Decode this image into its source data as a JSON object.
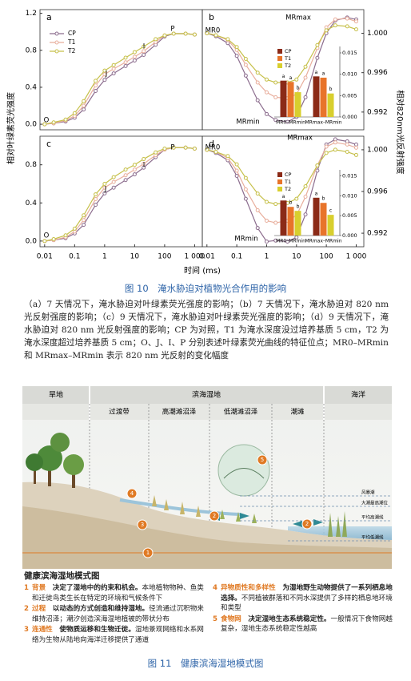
{
  "figure10": {
    "caption": "图 10　淹水胁迫对植物光合作用的影响",
    "description": "（a）7 天情况下，淹水胁迫对叶绿素荧光强度的影响；（b）7 天情况下，淹水胁迫对 820 nm 光反射强度的影响；（c）9 天情况下，淹水胁迫对叶绿素荧光强度的影响；（d）9 天情况下，淹水胁迫对 820 nm 光反射强度的影响；CP 为对照，T1 为淹水深度没过培养基质 5 cm，T2 为淹水深度超过培养基质 5 cm；O、J、I、P 分别表述叶绿素荧光曲线的特征位点；MR0–MRmin 和 MRmax–MRmin 表示 820 nm 光反射的变化幅度",
    "y_label": "相对叶绿素荧光强度",
    "y2_label": "相对820nm光反射强度",
    "x_label": "时间 (ms)"
  },
  "chart_data": [
    {
      "type": "line",
      "panel": "a",
      "log_x": true,
      "legend": "upper left",
      "x": [
        0.01,
        0.02,
        0.05,
        0.1,
        0.2,
        0.5,
        1,
        2,
        5,
        10,
        20,
        50,
        100,
        200,
        500,
        1000
      ],
      "xlim": [
        0.007,
        1800
      ],
      "ylim": [
        -0.06,
        1.24
      ],
      "yticks": [
        {
          "value": 0,
          "label": "0.0"
        },
        0.4,
        0.8,
        1.2
      ],
      "annotations": [
        "O",
        "J",
        "I",
        "P"
      ],
      "series": [
        {
          "name": "CP",
          "color": "#8c6d8e",
          "values": [
            0.0,
            0.01,
            0.03,
            0.07,
            0.16,
            0.36,
            0.48,
            0.55,
            0.63,
            0.69,
            0.75,
            0.86,
            0.95,
            0.98,
            0.98,
            0.97
          ]
        },
        {
          "name": "T1",
          "color": "#e8ae9c",
          "values": [
            0.0,
            0.01,
            0.04,
            0.09,
            0.2,
            0.42,
            0.54,
            0.6,
            0.67,
            0.73,
            0.79,
            0.89,
            0.96,
            0.98,
            0.98,
            0.97
          ]
        },
        {
          "name": "T2",
          "color": "#c6c04a",
          "values": [
            0.0,
            0.02,
            0.05,
            0.12,
            0.25,
            0.47,
            0.58,
            0.64,
            0.72,
            0.78,
            0.84,
            0.92,
            0.96,
            0.98,
            0.98,
            0.97
          ]
        }
      ]
    },
    {
      "type": "line",
      "panel": "b",
      "log_x": true,
      "x": [
        0.01,
        0.02,
        0.05,
        0.1,
        0.2,
        0.5,
        1,
        2,
        5,
        10,
        20,
        50,
        100,
        200,
        500,
        1000
      ],
      "xlim": [
        0.007,
        1800
      ],
      "y2lim": [
        0.9902,
        1.0024
      ],
      "y2ticks": [
        0.992,
        0.996,
        {
          "value": 1,
          "label": "1.000"
        }
      ],
      "annotations": [
        "MR0",
        "MRmin",
        "MRmax"
      ],
      "series": [
        {
          "color": "#8c6d8e",
          "axis": "y2",
          "values": [
            1.0,
            0.9997,
            0.999,
            0.9977,
            0.9957,
            0.9932,
            0.9918,
            0.9912,
            0.991,
            0.9915,
            0.9935,
            0.9975,
            1.0,
            1.0013,
            1.0016,
            1.0014
          ]
        },
        {
          "color": "#e8ae9c",
          "axis": "y2",
          "values": [
            1.0,
            0.9998,
            0.9993,
            0.9983,
            0.9968,
            0.995,
            0.994,
            0.9935,
            0.9934,
            0.9938,
            0.9955,
            0.9985,
            1.0006,
            1.0014,
            1.0015,
            1.0012
          ]
        },
        {
          "color": "#c6c04a",
          "axis": "y2",
          "values": [
            1.0,
            0.9998,
            0.9994,
            0.9986,
            0.9974,
            0.996,
            0.9953,
            0.995,
            0.995,
            0.9953,
            0.9966,
            0.9988,
            1.0003,
            1.0008,
            1.0007,
            1.0004
          ]
        }
      ],
      "inset": {
        "type": "bar",
        "categories": [
          "MR0–MRmin",
          "MRmax–MRmin"
        ],
        "legend": "upper left",
        "ylim": [
          0,
          0.0165
        ],
        "yticks": [
          {
            "value": 0,
            "label": "0.000"
          },
          0.005,
          {
            "value": 0.01,
            "label": "0.010"
          },
          0.015
        ],
        "series": [
          {
            "name": "CP",
            "color": "#8b2a17",
            "values": [
              0.0085,
              0.0095
            ],
            "letters": [
              "a",
              "a"
            ]
          },
          {
            "name": "T1",
            "color": "#e8742a",
            "values": [
              0.0082,
              0.0092
            ],
            "letters": [
              "a",
              "a"
            ]
          },
          {
            "name": "T2",
            "color": "#d8cf2e",
            "values": [
              0.0058,
              0.0055
            ],
            "letters": [
              "b",
              "b"
            ]
          }
        ]
      }
    },
    {
      "type": "line",
      "panel": "c",
      "log_x": true,
      "x": [
        0.01,
        0.02,
        0.05,
        0.1,
        0.2,
        0.5,
        1,
        2,
        5,
        10,
        20,
        50,
        100,
        200,
        500,
        1000
      ],
      "xlim": [
        0.007,
        1800
      ],
      "ylim": [
        -0.06,
        1.1
      ],
      "xticks": [
        0.01,
        0.1,
        1,
        10,
        100,
        {
          "value": 1000,
          "label": "1 000"
        }
      ],
      "yticks": [
        {
          "value": 0,
          "label": "0.0"
        },
        0.4,
        0.8
      ],
      "annotations": [
        "O",
        "J",
        "I",
        "P"
      ],
      "series": [
        {
          "color": "#8c6d8e",
          "values": [
            0.0,
            0.01,
            0.03,
            0.08,
            0.17,
            0.38,
            0.5,
            0.56,
            0.64,
            0.7,
            0.77,
            0.88,
            0.96,
            0.98,
            0.98,
            0.97
          ]
        },
        {
          "color": "#e8ae9c",
          "values": [
            0.0,
            0.01,
            0.04,
            0.1,
            0.22,
            0.44,
            0.56,
            0.62,
            0.69,
            0.75,
            0.81,
            0.9,
            0.96,
            0.98,
            0.98,
            0.97
          ]
        },
        {
          "color": "#c6c04a",
          "values": [
            0.0,
            0.02,
            0.06,
            0.13,
            0.27,
            0.49,
            0.6,
            0.67,
            0.75,
            0.8,
            0.86,
            0.93,
            0.97,
            0.98,
            0.98,
            0.97
          ]
        }
      ]
    },
    {
      "type": "line",
      "panel": "d",
      "log_x": true,
      "x": [
        0.01,
        0.02,
        0.05,
        0.1,
        0.2,
        0.5,
        1,
        2,
        5,
        10,
        20,
        50,
        100,
        200,
        500,
        1000
      ],
      "xlim": [
        0.007,
        1800
      ],
      "y2lim": [
        0.9907,
        1.0013
      ],
      "xticks": [
        0.01,
        0.1,
        1,
        10,
        100,
        {
          "value": 1000,
          "label": "1 000"
        }
      ],
      "y2ticks": [
        0.992,
        0.996,
        {
          "value": 1,
          "label": "1.000"
        }
      ],
      "annotations": [
        "MR0",
        "MRmin",
        "MRmax"
      ],
      "series": [
        {
          "color": "#8c6d8e",
          "axis": "y2",
          "values": [
            1.0,
            0.9997,
            0.999,
            0.9975,
            0.9953,
            0.9925,
            0.9912,
            0.9913,
            0.9912,
            0.9916,
            0.9938,
            0.998,
            1.0005,
            1.001,
            1.0008,
            1.0005
          ]
        },
        {
          "color": "#e8ae9c",
          "axis": "y2",
          "values": [
            1.0,
            0.9998,
            0.9992,
            0.998,
            0.9962,
            0.9942,
            0.9932,
            0.993,
            0.9932,
            0.9937,
            0.9955,
            0.9985,
            1.0003,
            1.0007,
            1.0005,
            1.0002
          ]
        },
        {
          "color": "#c6c04a",
          "axis": "y2",
          "values": [
            1.0,
            0.9998,
            0.9994,
            0.9986,
            0.9973,
            0.9958,
            0.995,
            0.9948,
            0.9949,
            0.9953,
            0.9965,
            0.9985,
            0.9997,
            1.0,
            0.9998,
            0.9995
          ]
        }
      ],
      "inset": {
        "type": "bar",
        "categories": [
          "MR0–MRmin",
          "MRmax–MRmin"
        ],
        "legend": "upper left",
        "ylim": [
          0,
          0.0165
        ],
        "yticks": [
          {
            "value": 0,
            "label": "0.000"
          },
          0.005,
          {
            "value": 0.01,
            "label": "0.010"
          },
          0.015
        ],
        "series": [
          {
            "name": "CP",
            "color": "#8b2a17",
            "values": [
              0.0088,
              0.0095
            ],
            "letters": [
              "a",
              "a"
            ]
          },
          {
            "name": "T1",
            "color": "#e8742a",
            "values": [
              0.0072,
              0.0082
            ],
            "letters": [
              "b",
              "b"
            ]
          },
          {
            "name": "T2",
            "color": "#d8cf2e",
            "values": [
              0.0062,
              0.0052
            ],
            "letters": [
              "b",
              "c"
            ]
          }
        ]
      }
    }
  ],
  "figure11": {
    "caption": "图 11　健康滨海湿地模式图",
    "title": "健康滨海湿地模式图",
    "zones": [
      "旱地",
      "滨海湿地",
      "海洋"
    ],
    "subzones": [
      "过渡带",
      "高潮滩沼泽",
      "低潮滩沼泽",
      "潮滩"
    ],
    "levels": [
      "风暴潮",
      "大潮最高潮位",
      "平均高潮线",
      "平均低潮线"
    ],
    "items": [
      {
        "number": "1",
        "head": "背景",
        "bold": "决定了湿地中的约束和机会。",
        "text": "本地植物物种、鱼类和迁徙鸟类生长在特定的环境和气候条件下"
      },
      {
        "number": "2",
        "head": "过程",
        "bold": "以动态的方式创造和维持湿地。",
        "text": "径流通过沉积物来维持沼泽；潮汐创造滨海湿地植被的带状分布"
      },
      {
        "number": "3",
        "head": "连通性",
        "bold": "使物质运移和生物迁徙。",
        "text": "湿地景观网络和水系网络为生物从陆地向海洋迁移提供了通道"
      },
      {
        "number": "4",
        "head": "异物质性和多样性",
        "bold": "为湿地野生动物提供了一系列栖息地选择。",
        "text": "不同植被群落和不同水深提供了多样的栖息地环境和类型"
      },
      {
        "number": "5",
        "head": "食物网",
        "bold": "决定湿地生态系统稳定性。",
        "text": "一般情况下食物网越复杂，湿地生态系统稳定性越高"
      }
    ]
  }
}
